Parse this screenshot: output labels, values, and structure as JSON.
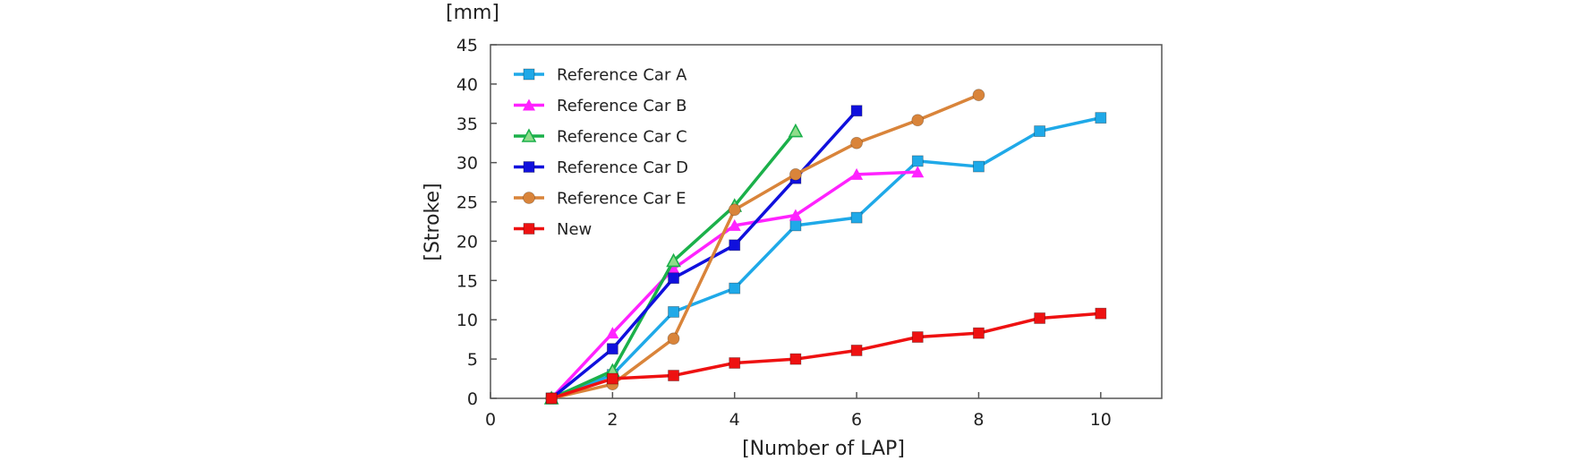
{
  "chart_data": {
    "type": "line",
    "title": "",
    "unit_label": "[mm]",
    "xlabel": "[Number of LAP]",
    "ylabel": "[Stroke]",
    "xlim": [
      0,
      11
    ],
    "ylim": [
      0,
      45
    ],
    "xticks": [
      0,
      2,
      4,
      6,
      8,
      10
    ],
    "yticks": [
      0,
      5,
      10,
      15,
      20,
      25,
      30,
      35,
      40,
      45
    ],
    "grid": false,
    "legend_position": "top-left",
    "series": [
      {
        "name": "Reference Car A",
        "color": "#1fa9e8",
        "marker": "square",
        "x": [
          1,
          2,
          3,
          4,
          5,
          6,
          7,
          8,
          9,
          10
        ],
        "y": [
          0,
          3.0,
          11.0,
          14.0,
          22.0,
          23.0,
          30.2,
          29.5,
          34.0,
          35.7
        ]
      },
      {
        "name": "Reference Car B",
        "color": "#ff22ff",
        "marker": "triangle",
        "x": [
          1,
          2,
          3,
          4,
          5,
          6,
          7
        ],
        "y": [
          0,
          8.3,
          16.5,
          22.0,
          23.3,
          28.5,
          28.8
        ]
      },
      {
        "name": "Reference Car C",
        "color": "#1bb04a",
        "marker": "triangle-open",
        "x": [
          1,
          2,
          3,
          4,
          5
        ],
        "y": [
          0,
          3.5,
          17.5,
          24.5,
          34.0
        ]
      },
      {
        "name": "Reference Car D",
        "color": "#1010dd",
        "marker": "square",
        "x": [
          1,
          2,
          3,
          4,
          5,
          6
        ],
        "y": [
          0,
          6.3,
          15.3,
          19.5,
          28.0,
          36.6
        ]
      },
      {
        "name": "Reference Car E",
        "color": "#d9843a",
        "marker": "circle",
        "x": [
          1,
          2,
          3,
          4,
          5,
          6,
          7,
          8
        ],
        "y": [
          0,
          1.8,
          7.6,
          24.0,
          28.5,
          32.5,
          35.4,
          38.6
        ]
      },
      {
        "name": "New",
        "color": "#ee1111",
        "marker": "square",
        "x": [
          1,
          2,
          3,
          4,
          5,
          6,
          7,
          8,
          9,
          10
        ],
        "y": [
          0,
          2.5,
          2.9,
          4.5,
          5.0,
          6.1,
          7.8,
          8.3,
          10.2,
          10.8
        ]
      }
    ]
  }
}
